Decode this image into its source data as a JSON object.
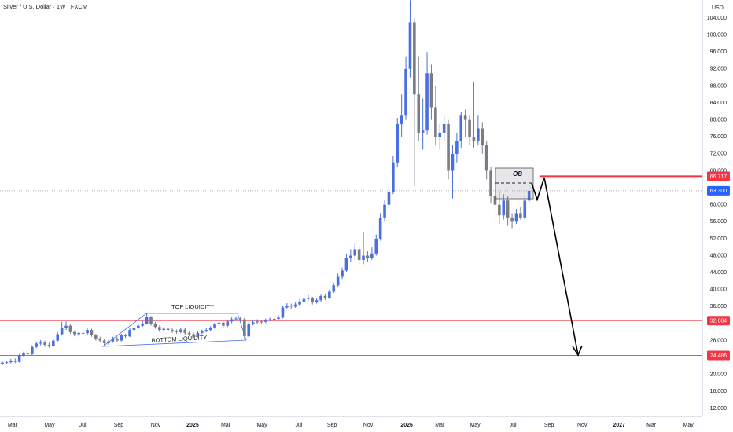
{
  "chart_data": {
    "type": "candlestick",
    "title": "Silver / U.S. Dollar · 1W · FXCM",
    "currency": "USD",
    "up_color": "#4a6fe3",
    "down_color": "#7a7c85",
    "open": [
      22.5,
      22.8,
      22.9,
      23.3,
      23.0,
      24.5,
      25.0,
      24.8,
      26.5,
      27.3,
      27.5,
      27.0,
      26.8,
      28.0,
      29.5,
      31.0,
      31.5,
      30.0,
      29.5,
      29.8,
      29.7,
      30.5,
      29.2,
      28.5,
      28.0,
      27.4,
      27.8,
      28.5,
      28.0,
      29.2,
      29.0,
      30.5,
      31.0,
      31.5,
      32.0,
      33.5,
      32.0,
      31.2,
      30.5,
      30.8,
      30.5,
      30.2,
      30.0,
      30.6,
      29.8,
      29.5,
      29.0,
      29.8,
      30.2,
      30.5,
      31.0,
      31.8,
      32.2,
      31.5,
      32.5,
      33.0,
      33.2,
      33.0,
      29.0,
      32.0,
      32.3,
      32.5,
      32.4,
      32.8,
      33.0,
      33.1,
      33.4,
      35.8,
      36.2,
      36.0,
      36.5,
      37.2,
      37.8,
      38.0,
      37.0,
      37.5,
      38.5,
      38.0,
      39.5,
      41.0,
      43.0,
      44.5,
      47.5,
      48.0,
      49.5,
      47.0,
      48.0,
      47.5,
      48.5,
      52.0,
      57.0,
      60.0,
      63.0,
      70.0,
      79.0,
      81.0,
      92.0,
      103.0,
      86.0,
      77.0,
      77.5,
      91.0,
      83.0,
      76.0,
      77.0,
      79.0,
      68.0,
      72.0,
      75.0,
      81.0,
      80.0,
      76.0,
      75.0,
      78.0,
      74.0,
      68.0,
      62.0,
      60.0,
      57.5,
      61.0,
      57.0,
      56.0,
      58.0,
      57.0,
      61.0
    ],
    "high": [
      23.2,
      23.3,
      23.7,
      23.8,
      24.8,
      25.4,
      25.6,
      26.9,
      27.8,
      28.1,
      28.0,
      27.5,
      28.4,
      30.0,
      32.4,
      32.5,
      31.8,
      30.4,
      30.2,
      30.3,
      31.0,
      30.8,
      29.6,
      28.9,
      28.4,
      28.2,
      28.9,
      29.0,
      29.6,
      29.6,
      30.9,
      31.5,
      32.0,
      32.6,
      34.5,
      33.8,
      32.4,
      31.6,
      31.2,
      31.1,
      30.9,
      30.6,
      31.0,
      30.9,
      30.2,
      29.9,
      30.2,
      30.6,
      30.9,
      31.4,
      32.2,
      32.7,
      32.5,
      32.9,
      33.5,
      33.7,
      33.6,
      33.3,
      32.4,
      32.8,
      33.0,
      32.9,
      33.2,
      33.4,
      33.6,
      34.0,
      36.2,
      36.8,
      36.7,
      37.0,
      37.8,
      38.4,
      39.0,
      38.3,
      38.0,
      39.0,
      39.0,
      40.0,
      41.6,
      43.8,
      45.2,
      48.5,
      49.5,
      51.0,
      50.2,
      53.5,
      49.2,
      50.0,
      53.0,
      58.0,
      61.0,
      65.0,
      71.5,
      80.5,
      86.0,
      95.0,
      108.2,
      104.0,
      95.0,
      85.0,
      96.0,
      93.0,
      88.0,
      79.0,
      81.0,
      80.0,
      74.0,
      77.0,
      82.0,
      82.5,
      81.0,
      89.0,
      81.0,
      79.5,
      75.0,
      69.0,
      64.0,
      63.0,
      62.5,
      62.0,
      58.0,
      59.0,
      59.5,
      62.0,
      64.5
    ],
    "low": [
      22.2,
      22.4,
      22.6,
      22.7,
      22.8,
      24.2,
      24.4,
      24.6,
      26.2,
      26.9,
      26.5,
      26.3,
      26.5,
      27.8,
      29.2,
      30.5,
      29.6,
      29.0,
      29.0,
      29.2,
      29.4,
      28.9,
      28.0,
      27.5,
      26.8,
      27.0,
      27.5,
      27.6,
      27.8,
      28.6,
      28.8,
      30.1,
      30.7,
      31.2,
      31.8,
      31.5,
      30.8,
      30.0,
      30.1,
      30.0,
      29.8,
      29.6,
      29.7,
      29.4,
      29.0,
      28.6,
      28.8,
      29.5,
      29.9,
      30.2,
      30.7,
      31.5,
      31.1,
      31.2,
      32.1,
      32.6,
      32.5,
      28.3,
      28.8,
      31.6,
      32.0,
      32.0,
      32.1,
      32.5,
      32.6,
      32.8,
      33.2,
      35.5,
      35.5,
      35.7,
      36.2,
      36.9,
      37.4,
      36.5,
      36.7,
      37.2,
      37.5,
      37.8,
      39.2,
      40.7,
      42.5,
      44.2,
      46.5,
      47.0,
      46.0,
      46.0,
      46.5,
      47.0,
      48.0,
      51.5,
      56.0,
      59.0,
      62.5,
      69.0,
      76.0,
      80.0,
      90.0,
      64.4,
      75.0,
      73.0,
      76.5,
      80.0,
      74.0,
      73.0,
      75.0,
      66.0,
      61.5,
      70.0,
      73.5,
      76.0,
      74.0,
      73.5,
      74.0,
      72.0,
      66.0,
      60.5,
      56.0,
      55.5,
      56.5,
      55.0,
      54.5,
      55.5,
      56.5,
      56.5,
      60.5
    ],
    "close": [
      22.8,
      22.9,
      23.3,
      23.0,
      24.5,
      25.0,
      24.8,
      26.5,
      27.3,
      27.5,
      27.0,
      26.8,
      28.0,
      29.5,
      31.0,
      31.5,
      30.0,
      29.5,
      29.8,
      29.7,
      30.5,
      29.2,
      28.5,
      28.0,
      27.4,
      27.8,
      28.5,
      28.0,
      29.2,
      29.0,
      30.5,
      31.0,
      31.5,
      32.0,
      33.5,
      32.0,
      31.2,
      30.5,
      30.8,
      30.5,
      30.2,
      30.0,
      30.6,
      29.8,
      29.5,
      29.0,
      29.8,
      30.2,
      30.5,
      31.0,
      31.8,
      32.2,
      31.5,
      32.5,
      33.0,
      33.2,
      33.0,
      29.0,
      32.0,
      32.3,
      32.5,
      32.4,
      32.8,
      33.0,
      33.1,
      33.4,
      35.8,
      36.2,
      36.0,
      36.5,
      37.2,
      37.8,
      38.0,
      37.0,
      37.5,
      38.5,
      38.0,
      39.5,
      41.0,
      43.0,
      44.5,
      47.5,
      48.0,
      49.5,
      47.0,
      48.0,
      47.5,
      48.5,
      52.0,
      57.0,
      60.0,
      63.0,
      70.0,
      79.0,
      81.0,
      92.0,
      103.0,
      86.0,
      77.0,
      77.5,
      91.0,
      83.0,
      76.0,
      77.0,
      79.0,
      68.0,
      72.0,
      75.0,
      81.0,
      80.0,
      76.0,
      75.0,
      78.0,
      74.0,
      68.0,
      62.0,
      60.0,
      57.5,
      61.0,
      57.0,
      56.0,
      58.0,
      57.0,
      61.0,
      63.3
    ],
    "xlim": [
      -0.56,
      164.8
    ],
    "xticks": [
      {
        "value": 2.4,
        "label": "Mar"
      },
      {
        "value": 11.1,
        "label": "May"
      },
      {
        "value": 18.9,
        "label": "Jul"
      },
      {
        "value": 27.4,
        "label": "Sep"
      },
      {
        "value": 36.1,
        "label": "Nov"
      },
      {
        "value": 44.8,
        "label": "2025"
      },
      {
        "value": 52.6,
        "label": "Mar"
      },
      {
        "value": 61.1,
        "label": "May"
      },
      {
        "value": 69.8,
        "label": "Jul"
      },
      {
        "value": 77.6,
        "label": "Sep"
      },
      {
        "value": 86.1,
        "label": "Nov"
      },
      {
        "value": 95.2,
        "label": "2026"
      },
      {
        "value": 103,
        "label": "Mar"
      },
      {
        "value": 111.3,
        "label": "May"
      },
      {
        "value": 120.2,
        "label": "Jul"
      },
      {
        "value": 128.7,
        "label": "Sep"
      },
      {
        "value": 136.5,
        "label": "Nov"
      },
      {
        "value": 145.2,
        "label": "2027"
      },
      {
        "value": 152.8,
        "label": "Mar"
      },
      {
        "value": 161.5,
        "label": "May"
      }
    ],
    "ylim": [
      10.15,
      108.26
    ],
    "yticks": [
      {
        "value": 104,
        "label": "104.000"
      },
      {
        "value": 100,
        "label": "100.000"
      },
      {
        "value": 96,
        "label": "96.000"
      },
      {
        "value": 92,
        "label": "92.000"
      },
      {
        "value": 88,
        "label": "88.000"
      },
      {
        "value": 84,
        "label": "84.000"
      },
      {
        "value": 80,
        "label": "80.000"
      },
      {
        "value": 76,
        "label": "76.000"
      },
      {
        "value": 72,
        "label": "72.000"
      },
      {
        "value": 68,
        "label": "68.000"
      },
      {
        "value": 60,
        "label": "60.000"
      },
      {
        "value": 56,
        "label": "56.000"
      },
      {
        "value": 52,
        "label": "52.000"
      },
      {
        "value": 48,
        "label": "48.000"
      },
      {
        "value": 44,
        "label": "44.000"
      },
      {
        "value": 40,
        "label": "40.000"
      },
      {
        "value": 36,
        "label": "36.000"
      },
      {
        "value": 28,
        "label": "28.000"
      },
      {
        "value": 20,
        "label": "20.000"
      },
      {
        "value": 16,
        "label": "16.000"
      },
      {
        "value": 12,
        "label": "12.000"
      }
    ],
    "levels": [
      {
        "value": 66.717,
        "color": "#f23645"
      },
      {
        "value": 63.3,
        "label": "63.300",
        "color": "#2962ff"
      },
      {
        "value": 32.684,
        "color": "#f23645"
      },
      {
        "value": 24.486,
        "color": "#f23645"
      }
    ],
    "annotations": [
      "TOP LIQUIDITY",
      "BOTTOM LIQUIDITY",
      "OB"
    ]
  }
}
